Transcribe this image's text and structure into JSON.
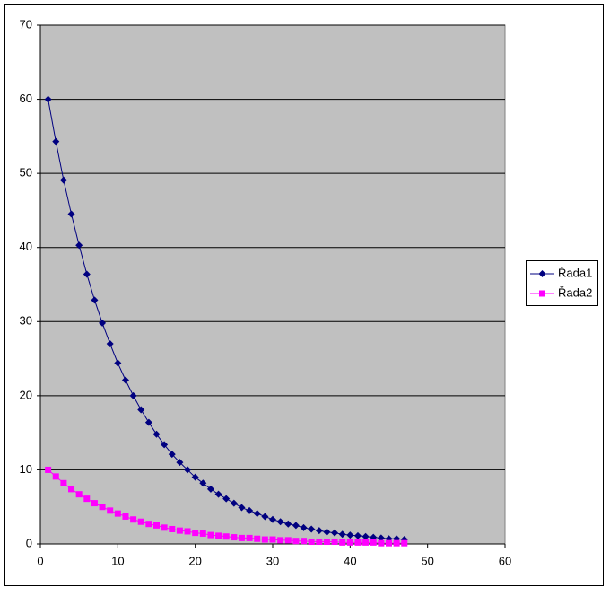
{
  "chart_data": {
    "type": "line",
    "x": [
      1,
      2,
      3,
      4,
      5,
      6,
      7,
      8,
      9,
      10,
      11,
      12,
      13,
      14,
      15,
      16,
      17,
      18,
      19,
      20,
      21,
      22,
      23,
      24,
      25,
      26,
      27,
      28,
      29,
      30,
      31,
      32,
      33,
      34,
      35,
      36,
      37,
      38,
      39,
      40,
      41,
      42,
      43,
      44,
      45,
      46,
      47
    ],
    "series": [
      {
        "name": "Řada1",
        "color": "#000080",
        "marker": "diamond",
        "values": [
          60,
          54.3,
          49.1,
          44.5,
          40.3,
          36.4,
          32.9,
          29.8,
          27.0,
          24.4,
          22.1,
          20.0,
          18.1,
          16.4,
          14.8,
          13.4,
          12.1,
          11.0,
          10.0,
          9.0,
          8.2,
          7.4,
          6.7,
          6.1,
          5.5,
          4.9,
          4.5,
          4.1,
          3.7,
          3.3,
          3.0,
          2.7,
          2.5,
          2.2,
          2.0,
          1.8,
          1.6,
          1.5,
          1.3,
          1.2,
          1.1,
          1.0,
          0.9,
          0.8,
          0.7,
          0.7,
          0.6
        ]
      },
      {
        "name": "Řada2",
        "color": "#ff00ff",
        "marker": "square",
        "values": [
          10,
          9.1,
          8.2,
          7.4,
          6.7,
          6.1,
          5.5,
          5.0,
          4.5,
          4.1,
          3.7,
          3.3,
          3.0,
          2.7,
          2.5,
          2.2,
          2.0,
          1.8,
          1.7,
          1.5,
          1.4,
          1.2,
          1.1,
          1.0,
          0.9,
          0.8,
          0.8,
          0.7,
          0.6,
          0.6,
          0.5,
          0.5,
          0.4,
          0.4,
          0.3,
          0.3,
          0.3,
          0.3,
          0.2,
          0.2,
          0.2,
          0.2,
          0.2,
          0.1,
          0.1,
          0.1,
          0.1
        ]
      }
    ],
    "xlim": [
      0,
      60
    ],
    "xticks": [
      0,
      10,
      20,
      30,
      40,
      50,
      60
    ],
    "ylim": [
      0,
      70
    ],
    "yticks": [
      0,
      10,
      20,
      30,
      40,
      50,
      60,
      70
    ],
    "grid": true,
    "plot_background": "#c0c0c0",
    "legend": "right"
  }
}
